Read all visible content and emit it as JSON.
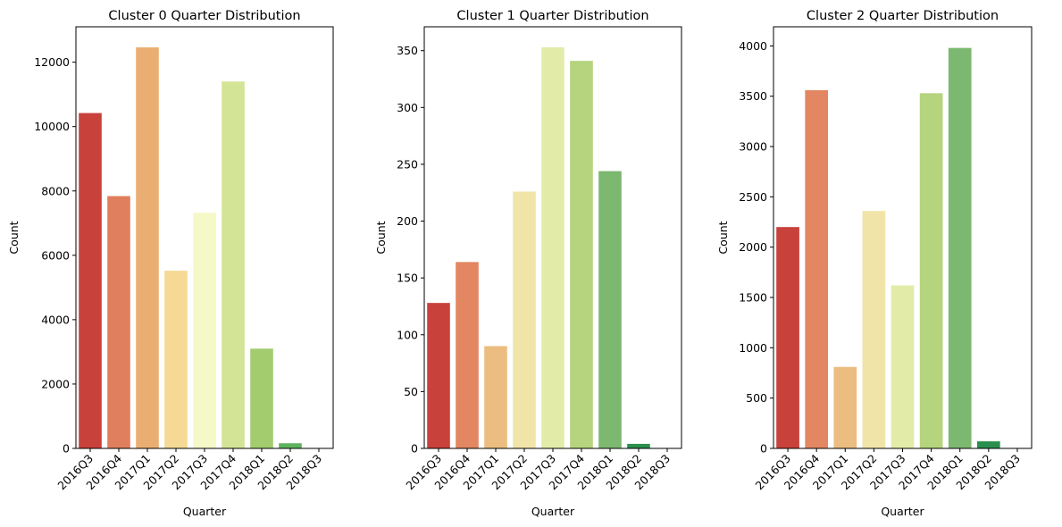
{
  "chart_data": [
    {
      "type": "bar",
      "title": "Cluster 0 Quarter Distribution",
      "xlabel": "Quarter",
      "ylabel": "Count",
      "categories": [
        "2016Q3",
        "2016Q4",
        "2017Q1",
        "2017Q2",
        "2017Q3",
        "2017Q4",
        "2018Q1",
        "2018Q2",
        "2018Q3"
      ],
      "values": [
        10420,
        7840,
        12460,
        5520,
        7320,
        11400,
        3100,
        160,
        0
      ],
      "ylim": [
        0,
        13100
      ],
      "yticks": [
        0,
        2000,
        4000,
        6000,
        8000,
        10000,
        12000
      ],
      "ytick_labels": [
        "0",
        "2000",
        "4000",
        "6000",
        "8000",
        "10000",
        "12000"
      ],
      "colors": [
        "#c9413b",
        "#e07f5d",
        "#ebae72",
        "#f5d995",
        "#f5f8c7",
        "#d3e496",
        "#a2cc6e",
        "#5fb35e",
        "#1a8c48"
      ]
    },
    {
      "type": "bar",
      "title": "Cluster 1 Quarter Distribution",
      "xlabel": "Quarter",
      "ylabel": "Count",
      "categories": [
        "2016Q3",
        "2016Q4",
        "2017Q1",
        "2017Q2",
        "2017Q3",
        "2017Q4",
        "2018Q1",
        "2018Q2",
        "2018Q3"
      ],
      "values": [
        128,
        164,
        90,
        226,
        353,
        341,
        244,
        4,
        0
      ],
      "ylim": [
        0,
        371
      ],
      "yticks": [
        0,
        50,
        100,
        150,
        200,
        250,
        300,
        350
      ],
      "ytick_labels": [
        "0",
        "50",
        "100",
        "150",
        "200",
        "250",
        "300",
        "350"
      ],
      "colors": [
        "#c9413b",
        "#e28761",
        "#ecbd80",
        "#f1e4a9",
        "#e2eca8",
        "#b5d47d",
        "#7cb870",
        "#2a8e4c",
        "#1a8c48"
      ]
    },
    {
      "type": "bar",
      "title": "Cluster 2 Quarter Distribution",
      "xlabel": "Quarter",
      "ylabel": "Count",
      "categories": [
        "2016Q3",
        "2016Q4",
        "2017Q1",
        "2017Q2",
        "2017Q3",
        "2017Q4",
        "2018Q1",
        "2018Q2",
        "2018Q3"
      ],
      "values": [
        2200,
        3560,
        810,
        2360,
        1620,
        3530,
        3980,
        70,
        0
      ],
      "ylim": [
        0,
        4190
      ],
      "yticks": [
        0,
        500,
        1000,
        1500,
        2000,
        2500,
        3000,
        3500,
        4000
      ],
      "ytick_labels": [
        "0",
        "500",
        "1000",
        "1500",
        "2000",
        "2500",
        "3000",
        "3500",
        "4000"
      ],
      "colors": [
        "#c9413b",
        "#e28761",
        "#ecbd80",
        "#f1e4a9",
        "#e2eca8",
        "#b5d47d",
        "#7cb870",
        "#2a8e4c",
        "#1a8c48"
      ]
    }
  ]
}
